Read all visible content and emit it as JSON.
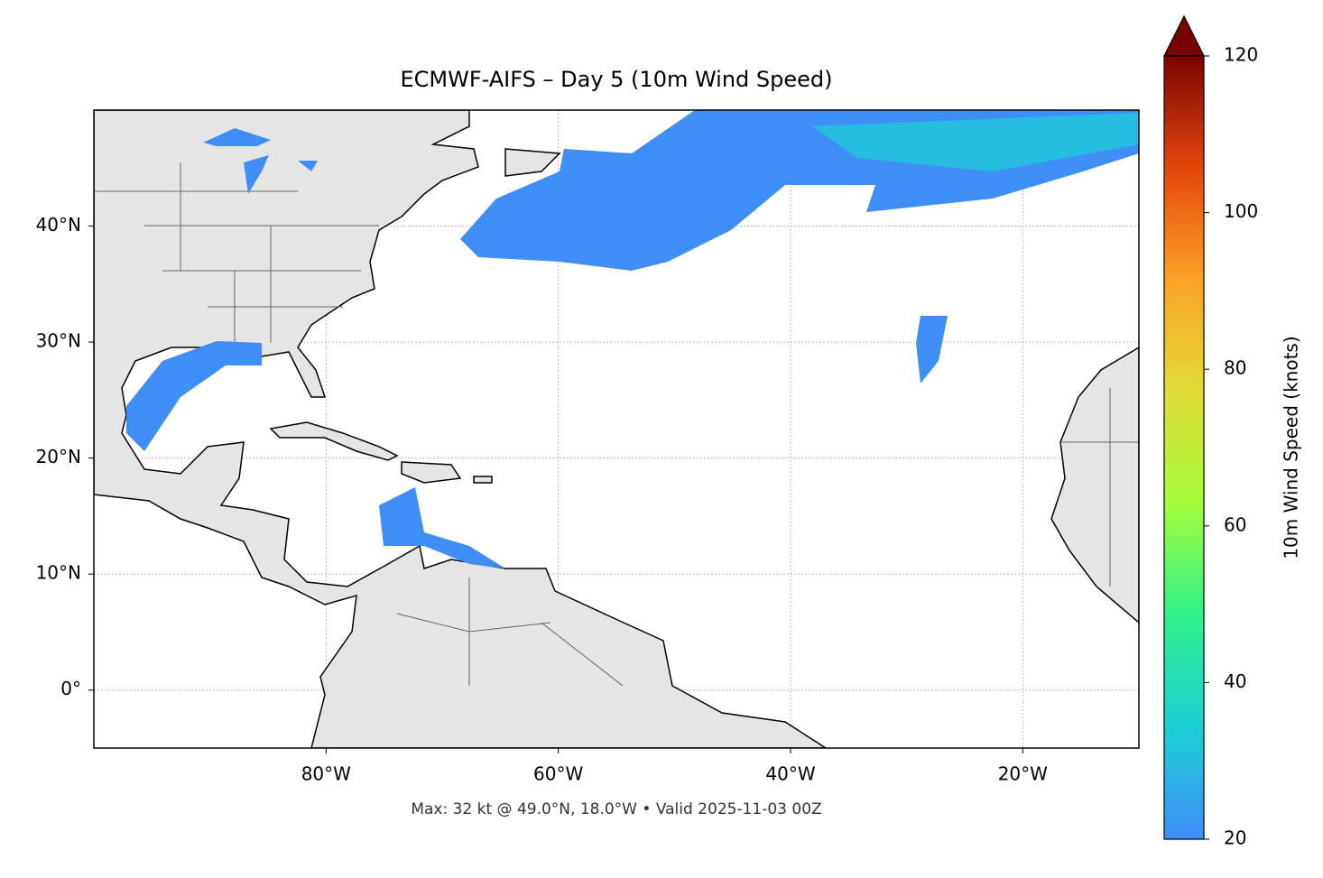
{
  "map": {
    "title": "ECMWF-AIFS – Day 5 (10m Wind Speed)",
    "footer": "Max: 32 kt @ 49.0°N, 18.0°W • Valid 2025-11-03 00Z",
    "xlim": [
      -100,
      -10
    ],
    "ylim": [
      -5,
      50
    ],
    "xticks": [
      {
        "value": -80,
        "label": "80°W"
      },
      {
        "value": -60,
        "label": "60°W"
      },
      {
        "value": -40,
        "label": "40°W"
      },
      {
        "value": -20,
        "label": "20°W"
      }
    ],
    "yticks": [
      {
        "value": 0,
        "label": "0°"
      },
      {
        "value": 10,
        "label": "10°N"
      },
      {
        "value": 20,
        "label": "20°N"
      },
      {
        "value": 30,
        "label": "30°N"
      },
      {
        "value": 40,
        "label": "40°N"
      }
    ],
    "grid": true,
    "colorbar": {
      "label": "10m Wind Speed (knots)",
      "lim": [
        20,
        120
      ],
      "ticks": [
        20,
        40,
        60,
        80,
        100,
        120
      ],
      "extend": "max",
      "colors": [
        "#3f8ef7",
        "#1bd0d5",
        "#2ef28b",
        "#a4fc3c",
        "#e2dc38",
        "#fba228",
        "#e4460a",
        "#7a0403"
      ]
    }
  }
}
